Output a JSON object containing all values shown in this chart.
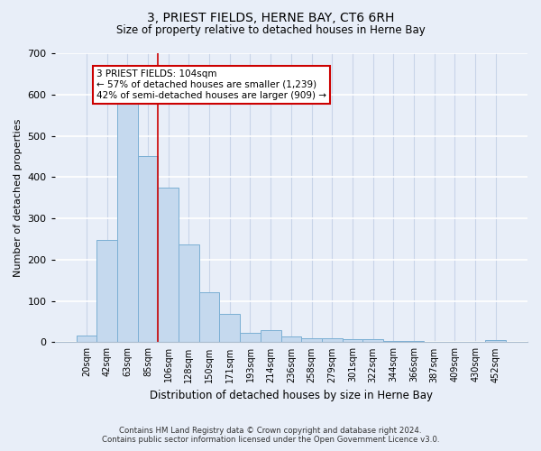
{
  "title": "3, PRIEST FIELDS, HERNE BAY, CT6 6RH",
  "subtitle": "Size of property relative to detached houses in Herne Bay",
  "xlabel": "Distribution of detached houses by size in Herne Bay",
  "ylabel": "Number of detached properties",
  "footer_line1": "Contains HM Land Registry data © Crown copyright and database right 2024.",
  "footer_line2": "Contains public sector information licensed under the Open Government Licence v3.0.",
  "bar_labels": [
    "20sqm",
    "42sqm",
    "63sqm",
    "85sqm",
    "106sqm",
    "128sqm",
    "150sqm",
    "171sqm",
    "193sqm",
    "214sqm",
    "236sqm",
    "258sqm",
    "279sqm",
    "301sqm",
    "322sqm",
    "344sqm",
    "366sqm",
    "387sqm",
    "409sqm",
    "430sqm",
    "452sqm"
  ],
  "bar_values": [
    17,
    248,
    585,
    450,
    375,
    237,
    120,
    68,
    22,
    30,
    13,
    10,
    9,
    8,
    8,
    4,
    4,
    0,
    0,
    0,
    5
  ],
  "bar_color": "#c5d9ee",
  "bar_edge_color": "#7bafd4",
  "bg_color": "#e8eef8",
  "grid_color": "#d0d8e8",
  "red_line_x": 3.5,
  "annotation_text": "3 PRIEST FIELDS: 104sqm\n← 57% of detached houses are smaller (1,239)\n42% of semi-detached houses are larger (909) →",
  "annotation_box_color": "#ffffff",
  "annotation_border_color": "#cc0000",
  "ylim": [
    0,
    700
  ],
  "yticks": [
    0,
    100,
    200,
    300,
    400,
    500,
    600,
    700
  ]
}
